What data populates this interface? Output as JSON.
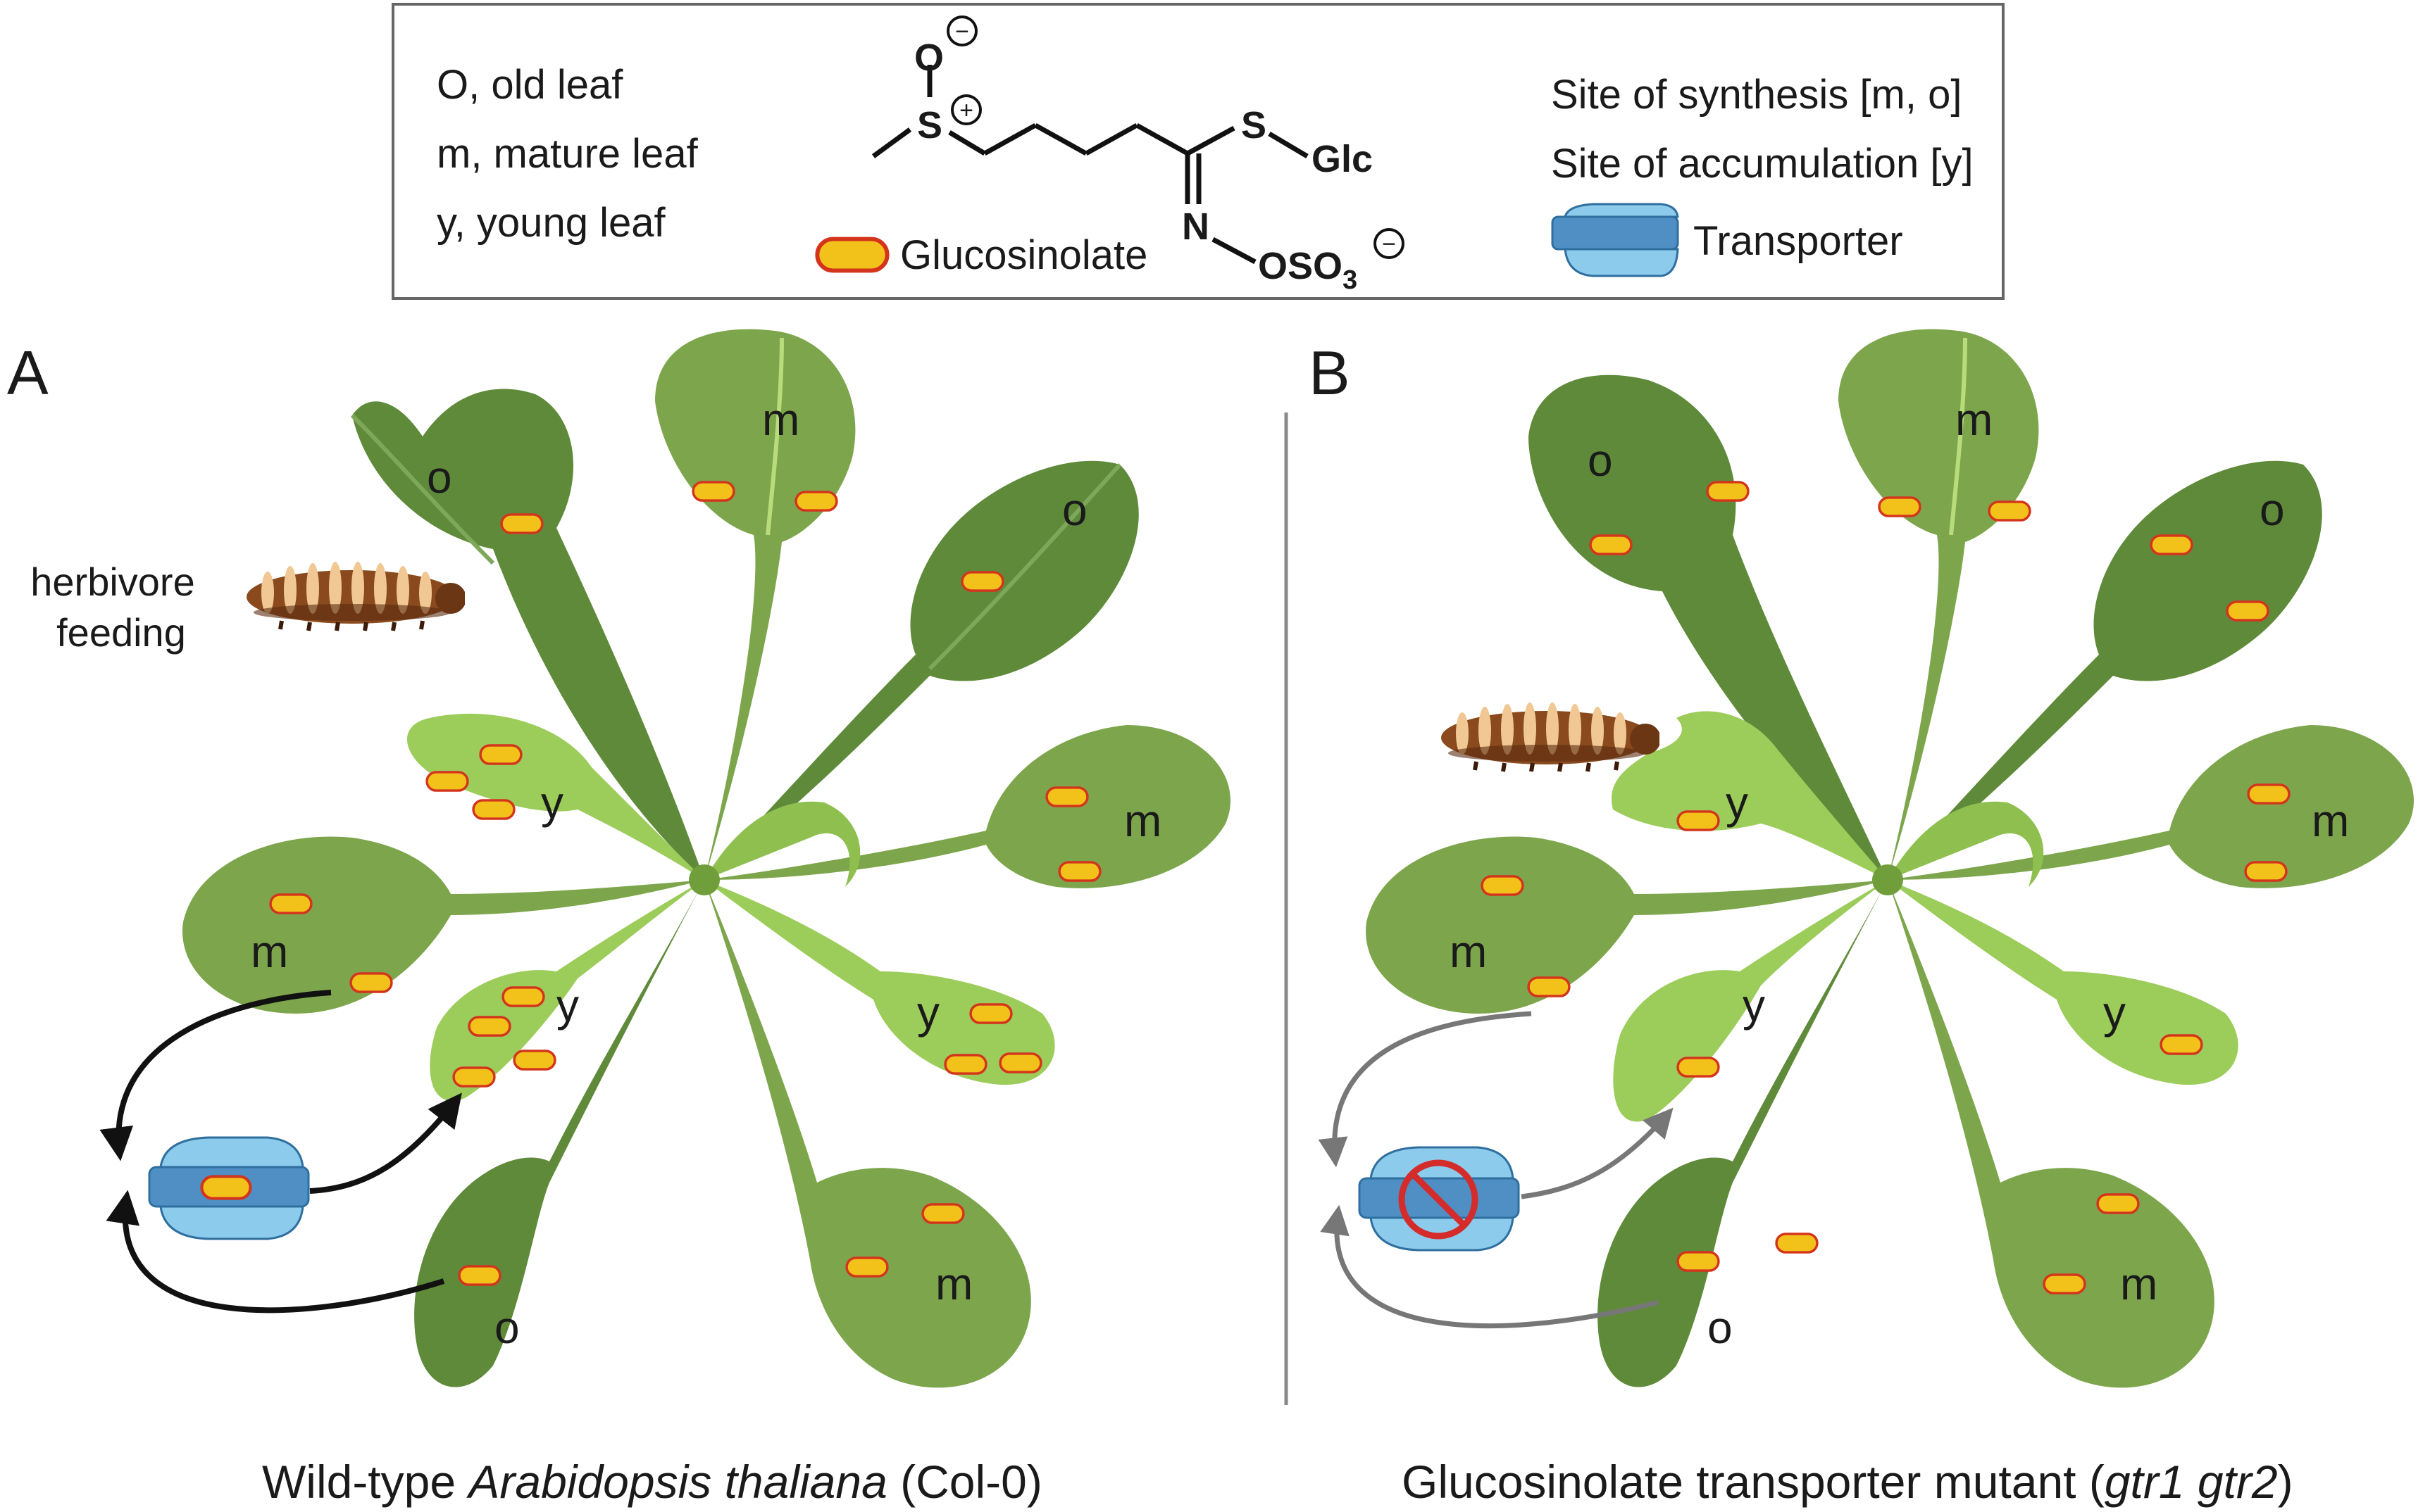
{
  "legend": {
    "left_lines": [
      "O, old leaf",
      "m, mature leaf",
      "y, young leaf"
    ],
    "right_lines": [
      "Site of synthesis [m, o]",
      "Site of accumulation [y]"
    ],
    "glucosinolate_label": "Glucosinolate",
    "transporter_label": "Transporter",
    "chem": {
      "atom_O": "O",
      "atom_S_sulfoxide": "S",
      "atom_S_thio": "S",
      "glc": "Glc",
      "atom_N": "N",
      "oso3_main": "OSO",
      "oso3_sub": "3",
      "charge_minus": "−",
      "charge_plus": "+"
    }
  },
  "panels": [
    {
      "letter": "A",
      "herbivore_label_line1": "herbivore",
      "herbivore_label_line2": "feeding",
      "leaf_labels": [
        "o",
        "m",
        "o",
        "y",
        "m",
        "m",
        "y",
        "y",
        "o",
        "m"
      ],
      "caption_prefix": "Wild-type ",
      "caption_italic": "Arabidopsis thaliana",
      "caption_suffix": " (Col-0)"
    },
    {
      "letter": "B",
      "leaf_labels": [
        "o",
        "m",
        "o",
        "y",
        "m",
        "m",
        "y",
        "y",
        "o",
        "m"
      ],
      "caption_prefix": "Glucosinolate transporter mutant (",
      "caption_italic": "gtr1 gtr2",
      "caption_suffix": ")"
    }
  ],
  "colors": {
    "old_leaf": "#5f8a3a",
    "mature_leaf": "#7da64c",
    "young_leaf": "#9ccc5a",
    "vein": "#b8dc7c",
    "glucosinolate_fill": "#f2c21b",
    "glucosinolate_outline": "#d4331c",
    "transporter_fill": "#8ccbeb",
    "transporter_band": "#4f8fc4",
    "block_sign": "#d42b2b",
    "arrow_wild_type": "#111111",
    "arrow_mutant": "#777777",
    "divider": "#888888"
  }
}
